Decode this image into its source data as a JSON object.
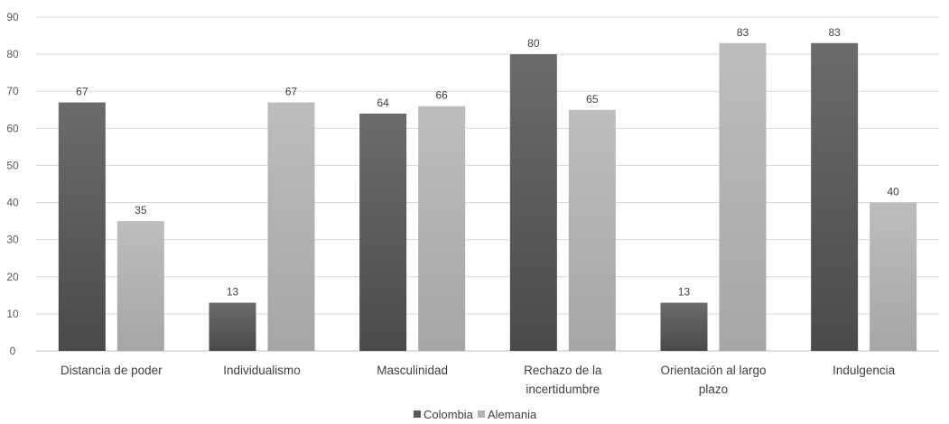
{
  "chart_data": {
    "type": "bar",
    "title": "",
    "xlabel": "",
    "ylabel": "",
    "categories": [
      [
        "Distancia de poder"
      ],
      [
        "Individualismo"
      ],
      [
        "Masculinidad"
      ],
      [
        "Rechazo de la",
        "incertidumbre"
      ],
      [
        "Orientación al largo",
        "plazo"
      ],
      [
        "Indulgencia"
      ]
    ],
    "series": [
      {
        "name": "Colombia",
        "color": "#595959",
        "values": [
          67,
          13,
          64,
          80,
          13,
          83
        ]
      },
      {
        "name": "Alemania",
        "color": "#b3b3b3",
        "values": [
          35,
          67,
          66,
          65,
          83,
          40
        ]
      }
    ],
    "ylim": [
      0,
      90
    ],
    "yticks": [
      0,
      10,
      20,
      30,
      40,
      50,
      60,
      70,
      80,
      90
    ],
    "grid": true,
    "legend": "bottom-center",
    "data_labels": true
  }
}
